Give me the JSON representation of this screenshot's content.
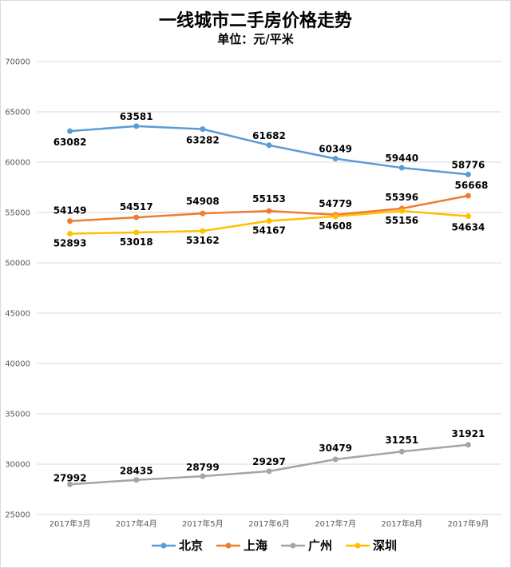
{
  "chart_data": {
    "type": "line",
    "title": "一线城市二手房价格走势",
    "subtitle": "单位：元/平米",
    "xlabel": "",
    "ylabel": "",
    "ylim": [
      25000,
      70000
    ],
    "yticks": [
      25000,
      30000,
      35000,
      40000,
      45000,
      50000,
      55000,
      60000,
      65000,
      70000
    ],
    "grid": true,
    "legend": "bottom",
    "categories": [
      "2017年3月",
      "2017年4月",
      "2017年5月",
      "2017年6月",
      "2017年7月",
      "2017年8月",
      "2017年9月"
    ],
    "series": [
      {
        "name": "北京",
        "color": "#5b9bd5",
        "values": [
          63082,
          63581,
          63282,
          61682,
          60349,
          59440,
          58776
        ]
      },
      {
        "name": "上海",
        "color": "#ed7d31",
        "values": [
          54149,
          54517,
          54908,
          55153,
          54779,
          55396,
          56668
        ]
      },
      {
        "name": "广州",
        "color": "#a5a5a5",
        "values": [
          27992,
          28435,
          28799,
          29297,
          30479,
          31251,
          31921
        ]
      },
      {
        "name": "深圳",
        "color": "#ffc000",
        "values": [
          52893,
          53018,
          53162,
          54167,
          54608,
          55156,
          54634
        ]
      }
    ]
  }
}
